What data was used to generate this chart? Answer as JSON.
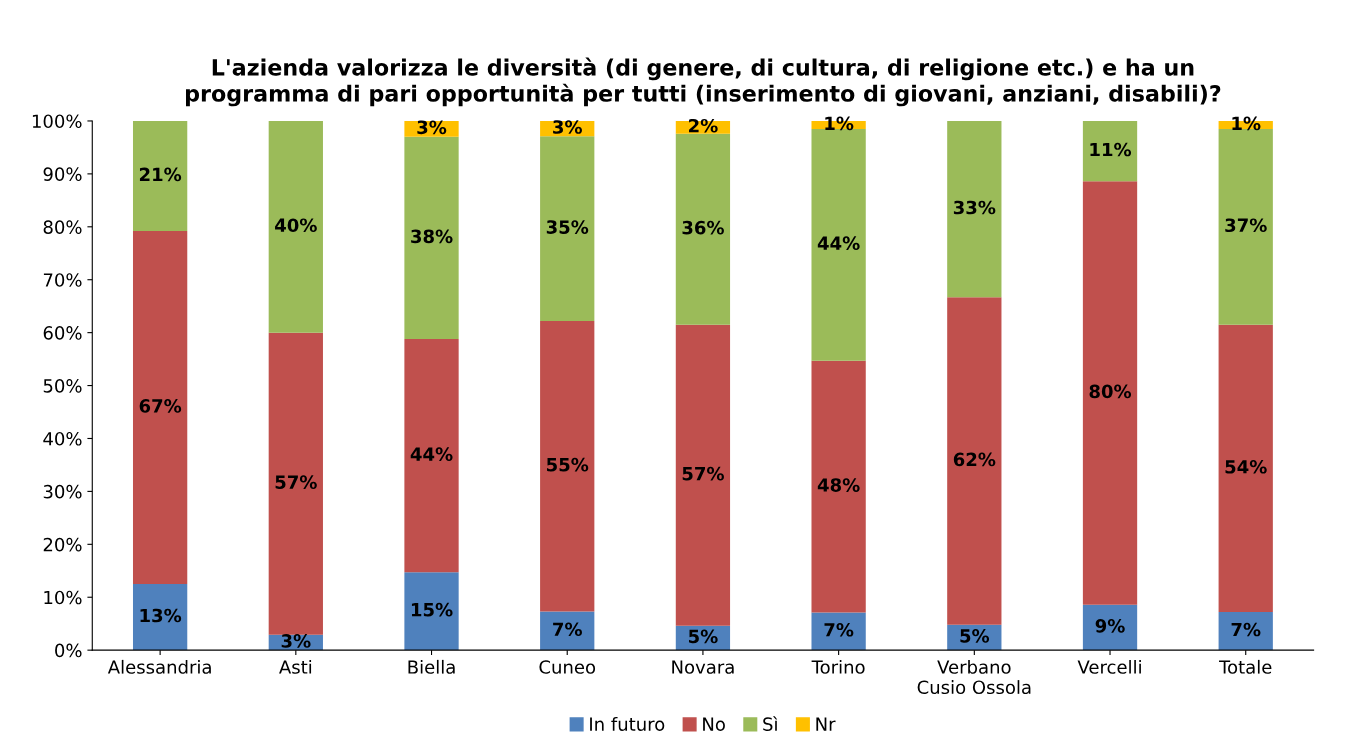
{
  "chart_data": {
    "type": "bar",
    "stacked": true,
    "title": "L'azienda valorizza le diversità (di genere, di cultura, di religione etc.) e ha un\nprogramma di pari opportunità per tutti (inserimento di giovani, anziani, disabili)?",
    "categories": [
      "Alessandria",
      "Asti",
      "Biella",
      "Cuneo",
      "Novara",
      "Torino",
      "Verbano\nCusio Ossola",
      "Vercelli",
      "Totale"
    ],
    "series": [
      {
        "name": "In futuro",
        "color": "#4f81bd",
        "values": [
          12.5,
          2.9,
          14.7,
          7.3,
          4.6,
          7.1,
          4.8,
          8.6,
          7.2
        ],
        "value_labels": [
          "13%",
          "3%",
          "15%",
          "7%",
          "5%",
          "7%",
          "5%",
          "9%",
          "7%"
        ]
      },
      {
        "name": "No",
        "color": "#c0504d",
        "values": [
          66.7,
          57.1,
          44.1,
          54.9,
          56.9,
          47.6,
          61.9,
          80.0,
          54.3
        ],
        "value_labels": [
          "67%",
          "57%",
          "44%",
          "55%",
          "57%",
          "48%",
          "62%",
          "80%",
          "54%"
        ]
      },
      {
        "name": "Sì",
        "color": "#9bbb59",
        "values": [
          20.8,
          40.0,
          38.2,
          34.9,
          36.1,
          43.8,
          33.3,
          11.4,
          37.0
        ],
        "value_labels": [
          "21%",
          "40%",
          "38%",
          "35%",
          "36%",
          "44%",
          "33%",
          "11%",
          "37%"
        ]
      },
      {
        "name": "Nr",
        "color": "#ffc000",
        "values": [
          null,
          null,
          3.0,
          2.9,
          2.4,
          1.5,
          null,
          null,
          1.5
        ],
        "value_labels": [
          null,
          null,
          "3%",
          "3%",
          "2%",
          "1%",
          null,
          null,
          "1%"
        ]
      }
    ],
    "ylim": [
      0,
      100
    ],
    "yticks": [
      {
        "value": 0,
        "label": "0%"
      },
      {
        "value": 10,
        "label": "10%"
      },
      {
        "value": 20,
        "label": "20%"
      },
      {
        "value": 30,
        "label": "30%"
      },
      {
        "value": 40,
        "label": "40%"
      },
      {
        "value": 50,
        "label": "50%"
      },
      {
        "value": 60,
        "label": "60%"
      },
      {
        "value": 70,
        "label": "70%"
      },
      {
        "value": 80,
        "label": "80%"
      },
      {
        "value": 90,
        "label": "90%"
      },
      {
        "value": 100,
        "label": "100%"
      }
    ],
    "grid": false,
    "legend": "bottom"
  }
}
